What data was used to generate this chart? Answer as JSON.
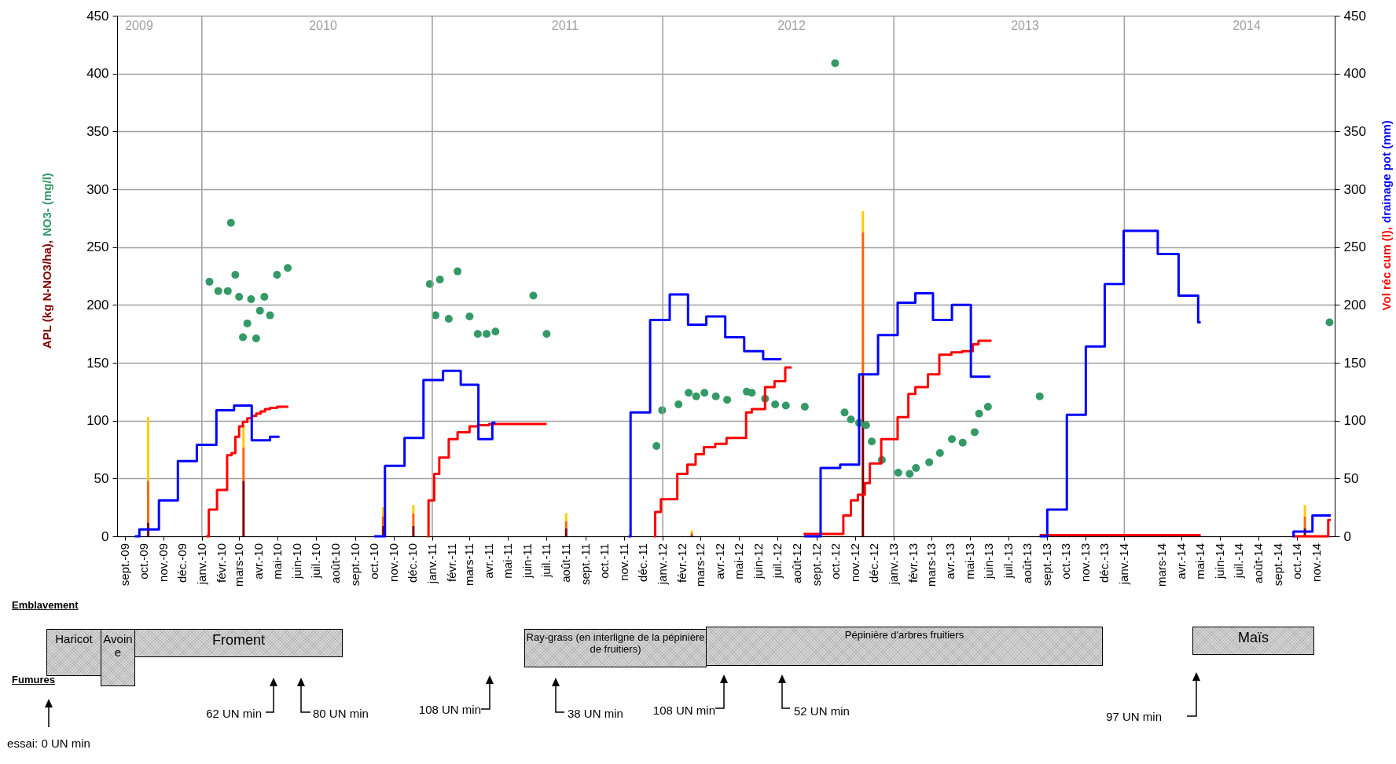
{
  "chart_data": {
    "type": "bar",
    "ylabel": "APL (kg N-NO3/ha), NO3- (mg/l)",
    "y2label": "Vol réc cum (l), drainage pot (mm)",
    "xlim": [
      "2009-08-26",
      "2014-11-24"
    ],
    "xticks": [
      {
        "value": "2009-09-01",
        "label": "sept.-09"
      },
      {
        "value": "2009-10-01",
        "label": "oct.-09"
      },
      {
        "value": "2009-11-01",
        "label": "nov.-09"
      },
      {
        "value": "2009-12-01",
        "label": "déc.-09"
      },
      {
        "value": "2010-01-01",
        "label": "janv.-10"
      },
      {
        "value": "2010-02-01",
        "label": "févr.-10"
      },
      {
        "value": "2010-03-01",
        "label": "mars-10"
      },
      {
        "value": "2010-04-01",
        "label": "avr.-10"
      },
      {
        "value": "2010-05-01",
        "label": "mai-10"
      },
      {
        "value": "2010-06-01",
        "label": "juin-10"
      },
      {
        "value": "2010-07-01",
        "label": "juil.-10"
      },
      {
        "value": "2010-08-01",
        "label": "août-10"
      },
      {
        "value": "2010-09-01",
        "label": "sept.-10"
      },
      {
        "value": "2010-10-01",
        "label": "oct.-10"
      },
      {
        "value": "2010-11-01",
        "label": "nov.-10"
      },
      {
        "value": "2010-12-01",
        "label": "déc.-10"
      },
      {
        "value": "2011-01-01",
        "label": "janv.-11"
      },
      {
        "value": "2011-02-01",
        "label": "févr.-11"
      },
      {
        "value": "2011-03-01",
        "label": "mars-11"
      },
      {
        "value": "2011-04-01",
        "label": "avr.-11"
      },
      {
        "value": "2011-05-01",
        "label": "mai-11"
      },
      {
        "value": "2011-06-01",
        "label": "juin-11"
      },
      {
        "value": "2011-07-01",
        "label": "juil.-11"
      },
      {
        "value": "2011-08-01",
        "label": "août-11"
      },
      {
        "value": "2011-09-01",
        "label": "sept.-11"
      },
      {
        "value": "2011-10-01",
        "label": "oct.-11"
      },
      {
        "value": "2011-11-01",
        "label": "nov.-11"
      },
      {
        "value": "2011-12-01",
        "label": "déc.-11"
      },
      {
        "value": "2012-01-01",
        "label": "janv.-12"
      },
      {
        "value": "2012-02-01",
        "label": "févr.-12"
      },
      {
        "value": "2012-03-01",
        "label": "mars-12"
      },
      {
        "value": "2012-04-01",
        "label": "avr.-12"
      },
      {
        "value": "2012-05-01",
        "label": "mai-12"
      },
      {
        "value": "2012-06-01",
        "label": "juin-12"
      },
      {
        "value": "2012-07-01",
        "label": "juil.-12"
      },
      {
        "value": "2012-08-01",
        "label": "août-12"
      },
      {
        "value": "2012-09-01",
        "label": "sept.-12"
      },
      {
        "value": "2012-10-01",
        "label": "oct.-12"
      },
      {
        "value": "2012-11-01",
        "label": "nov.-12"
      },
      {
        "value": "2012-12-01",
        "label": "déc.-12"
      },
      {
        "value": "2013-01-01",
        "label": "janv.-13"
      },
      {
        "value": "2013-02-01",
        "label": "févr.-13"
      },
      {
        "value": "2013-03-01",
        "label": "mars-13"
      },
      {
        "value": "2013-04-01",
        "label": "avr.-13"
      },
      {
        "value": "2013-05-01",
        "label": "mai-13"
      },
      {
        "value": "2013-06-01",
        "label": "juin-13"
      },
      {
        "value": "2013-07-01",
        "label": "juil.-13"
      },
      {
        "value": "2013-08-01",
        "label": "août-13"
      },
      {
        "value": "2013-09-01",
        "label": "sept.-13"
      },
      {
        "value": "2013-10-01",
        "label": "oct.-13"
      },
      {
        "value": "2013-11-01",
        "label": "nov.-13"
      },
      {
        "value": "2013-12-01",
        "label": "déc.-13"
      },
      {
        "value": "2014-01-01",
        "label": "janv.-14"
      },
      {
        "value": "2014-03-01",
        "label": "mars-14"
      },
      {
        "value": "2014-04-01",
        "label": "avr.-14"
      },
      {
        "value": "2014-05-01",
        "label": "mai-14"
      },
      {
        "value": "2014-06-01",
        "label": "juin-14"
      },
      {
        "value": "2014-07-01",
        "label": "juil.-14"
      },
      {
        "value": "2014-08-01",
        "label": "août-14"
      },
      {
        "value": "2014-09-01",
        "label": "sept.-14"
      },
      {
        "value": "2014-10-01",
        "label": "oct.-14"
      },
      {
        "value": "2014-11-01",
        "label": "nov.-14"
      }
    ],
    "ylim": [
      0,
      450
    ],
    "yticks": [
      0,
      50,
      100,
      150,
      200,
      250,
      300,
      350,
      400,
      450
    ],
    "y2lim": [
      0,
      450
    ],
    "y2ticks": [
      0,
      50,
      100,
      150,
      200,
      250,
      300,
      350,
      400,
      450
    ],
    "grid": "y",
    "stacked": true,
    "ref_lines": [
      {
        "axis": "x",
        "value": "2010-01-01",
        "color": "#a0a0a0"
      },
      {
        "axis": "x",
        "value": "2011-01-01",
        "color": "#a0a0a0"
      },
      {
        "axis": "x",
        "value": "2012-01-01",
        "color": "#a0a0a0"
      },
      {
        "axis": "x",
        "value": "2013-01-01",
        "color": "#a0a0a0"
      },
      {
        "axis": "x",
        "value": "2014-01-01",
        "color": "#a0a0a0"
      }
    ],
    "series": [
      {
        "color": "#800000",
        "x": [
          "2009-10-08",
          "2010-03-08",
          "2010-10-15",
          "2010-12-02",
          "2011-08-01",
          "2012-02-16",
          "2012-11-13",
          "2014-10-14"
        ],
        "values": [
          12,
          48,
          9,
          9,
          7,
          1,
          140,
          7
        ]
      },
      {
        "color": "#ff6600",
        "x": [
          "2009-10-08",
          "2010-03-08",
          "2010-10-15",
          "2010-12-02",
          "2011-08-01",
          "2012-02-16",
          "2012-11-13",
          "2014-10-14"
        ],
        "values": [
          36,
          29,
          8,
          11,
          6,
          2,
          123,
          10
        ]
      },
      {
        "color": "#ffcc00",
        "x": [
          "2009-10-08",
          "2010-03-08",
          "2010-10-15",
          "2010-12-02",
          "2011-08-01",
          "2012-02-16",
          "2012-11-13",
          "2014-10-14"
        ],
        "values": [
          55,
          19,
          8,
          7,
          7,
          2,
          18,
          10
        ]
      },
      {
        "type": "scatter",
        "marker": "circle",
        "color": "#339966",
        "x": [
          "2010-01-13",
          "2010-01-27",
          "2010-02-11",
          "2010-02-16",
          "2010-02-23",
          "2010-03-01",
          "2010-03-07",
          "2010-03-14",
          "2010-03-20",
          "2010-03-28",
          "2010-04-03",
          "2010-04-10",
          "2010-04-19",
          "2010-04-30",
          "2010-05-17",
          "2010-12-28",
          "2011-01-06",
          "2011-01-13",
          "2011-01-27",
          "2011-02-10",
          "2011-03-01",
          "2011-03-14",
          "2011-03-28",
          "2011-04-11",
          "2011-06-10",
          "2011-07-01",
          "2011-12-22",
          "2011-12-31",
          "2012-01-26",
          "2012-02-11",
          "2012-02-23",
          "2012-03-07",
          "2012-03-25",
          "2012-04-12",
          "2012-05-13",
          "2012-05-21",
          "2012-06-11",
          "2012-06-27",
          "2012-07-14",
          "2012-08-13",
          "2012-09-30",
          "2012-10-15",
          "2012-10-25",
          "2012-11-07",
          "2012-11-18",
          "2012-11-27",
          "2012-12-13",
          "2013-01-08",
          "2013-01-26",
          "2013-02-05",
          "2013-02-26",
          "2013-03-15",
          "2013-04-03",
          "2013-04-20",
          "2013-05-09",
          "2013-05-16",
          "2013-05-30",
          "2013-08-20",
          "2014-11-22"
        ],
        "values": [
          220,
          212,
          212,
          271,
          226,
          207,
          172,
          184,
          205,
          171,
          195,
          207,
          191,
          226,
          232,
          218,
          191,
          222,
          188,
          229,
          190,
          175,
          175,
          177,
          208,
          175,
          78,
          109,
          114,
          124,
          121,
          124,
          121,
          118,
          125,
          124,
          119,
          114,
          113,
          112,
          409,
          107,
          101,
          98,
          96,
          82,
          66,
          55,
          54,
          59,
          64,
          72,
          84,
          81,
          90,
          106,
          112,
          121,
          185
        ]
      },
      {
        "type": "step",
        "axis": "y2",
        "color": "#ff0000",
        "x": [
          "2010-01-08",
          "2010-01-12",
          "2010-01-25",
          "2010-02-10",
          "2010-02-17",
          "2010-02-23",
          "2010-03-01",
          "2010-03-07",
          "2010-03-14",
          "2010-03-21",
          "2010-03-28",
          "2010-04-04",
          "2010-04-11",
          "2010-04-19",
          "2010-04-30",
          "2010-05-18",
          "2010-08-01",
          "2010-12-24",
          "2010-12-26",
          "2011-01-04",
          "2011-01-12",
          "2011-01-27",
          "2011-02-10",
          "2011-03-01",
          "2011-03-14",
          "2011-04-01",
          "2011-07-01",
          "2011-09-01",
          "2011-12-18",
          "2011-12-20",
          "2011-12-29",
          "2012-01-24",
          "2012-02-09",
          "2012-02-22",
          "2012-03-06",
          "2012-03-24",
          "2012-04-11",
          "2012-05-12",
          "2012-05-21",
          "2012-06-11",
          "2012-06-26",
          "2012-07-13",
          "2012-07-23",
          "2012-08-01",
          "2012-08-11",
          "2012-10-13",
          "2012-10-25",
          "2012-11-05",
          "2012-11-16",
          "2012-11-24",
          "2012-12-12",
          "2013-01-07",
          "2013-01-24",
          "2013-02-04",
          "2013-02-24",
          "2013-03-14",
          "2013-04-02",
          "2013-04-19",
          "2013-05-06",
          "2013-05-15",
          "2013-06-03",
          "2013-07-15",
          "2013-08-20",
          "2014-05-02",
          "2014-07-01",
          "2014-09-26",
          "2014-11-20",
          "2014-11-24"
        ],
        "values": [
          0,
          23,
          40,
          70,
          72,
          86,
          95,
          99,
          102,
          104,
          106,
          108,
          110,
          111,
          112,
          112,
          null,
          0,
          31,
          54,
          68,
          84,
          90,
          95,
          96,
          97,
          97,
          null,
          0,
          21,
          32,
          54,
          62,
          71,
          77,
          80,
          85,
          107,
          110,
          129,
          134,
          146,
          146,
          null,
          2,
          18,
          31,
          36,
          46,
          63,
          84,
          103,
          123,
          129,
          140,
          157,
          159,
          160,
          166,
          169,
          170,
          null,
          1,
          1,
          null,
          0,
          14,
          14
        ]
      },
      {
        "type": "step",
        "axis": "y2",
        "color": "#0000ff",
        "x": [
          "2009-09-17",
          "2009-09-24",
          "2009-10-25",
          "2009-11-24",
          "2009-12-24",
          "2010-01-24",
          "2010-02-21",
          "2010-03-21",
          "2010-04-19",
          "2010-05-04",
          "2010-07-01",
          "2010-10-01",
          "2010-10-18",
          "2010-11-18",
          "2010-12-18",
          "2011-01-18",
          "2011-02-15",
          "2011-03-15",
          "2011-04-06",
          "2011-04-11",
          "2011-08-01",
          "2011-11-08",
          "2011-11-11",
          "2011-12-12",
          "2012-01-12",
          "2012-02-10",
          "2012-03-10",
          "2012-04-09",
          "2012-05-09",
          "2012-06-08",
          "2012-07-07",
          "2012-07-25",
          "2012-08-12",
          "2012-09-07",
          "2012-10-08",
          "2012-11-07",
          "2012-12-07",
          "2013-01-07",
          "2013-02-04",
          "2013-03-04",
          "2013-04-03",
          "2013-05-03",
          "2013-06-03",
          "2013-07-15",
          "2013-08-20",
          "2013-09-01",
          "2013-10-02",
          "2013-11-01",
          "2013-12-01",
          "2013-12-31",
          "2014-02-23",
          "2014-03-28",
          "2014-04-28",
          "2014-05-02",
          "2014-07-01",
          "2014-09-25",
          "2014-09-26",
          "2014-10-26",
          "2014-11-24"
        ],
        "values": [
          0,
          6,
          31,
          65,
          79,
          109,
          113,
          83,
          86,
          86,
          null,
          0,
          61,
          85,
          135,
          143,
          131,
          84,
          98,
          98,
          null,
          0,
          107,
          187,
          209,
          183,
          190,
          172,
          160,
          153,
          153,
          null,
          0,
          59,
          62,
          140,
          174,
          202,
          210,
          187,
          200,
          138,
          138,
          null,
          0,
          23,
          105,
          164,
          218,
          264,
          244,
          208,
          185,
          185,
          null,
          0,
          4,
          18,
          18
        ]
      }
    ],
    "annotations": [
      "Emblavement",
      "Haricot",
      "Avoine",
      "Froment",
      "Ray-grass (en interligne de la pépinière de fruitiers)",
      "Pépinière d'arbres fruitiers",
      "Maïs",
      "Fumures",
      "essai: 0 UN min",
      "62 UN min",
      "80 UN min",
      "108 UN min",
      "38 UN min",
      "108 UN min",
      "52 UN min",
      "97 UN min",
      "2009",
      "2010",
      "2011",
      "2012",
      "2013",
      "2014"
    ]
  }
}
